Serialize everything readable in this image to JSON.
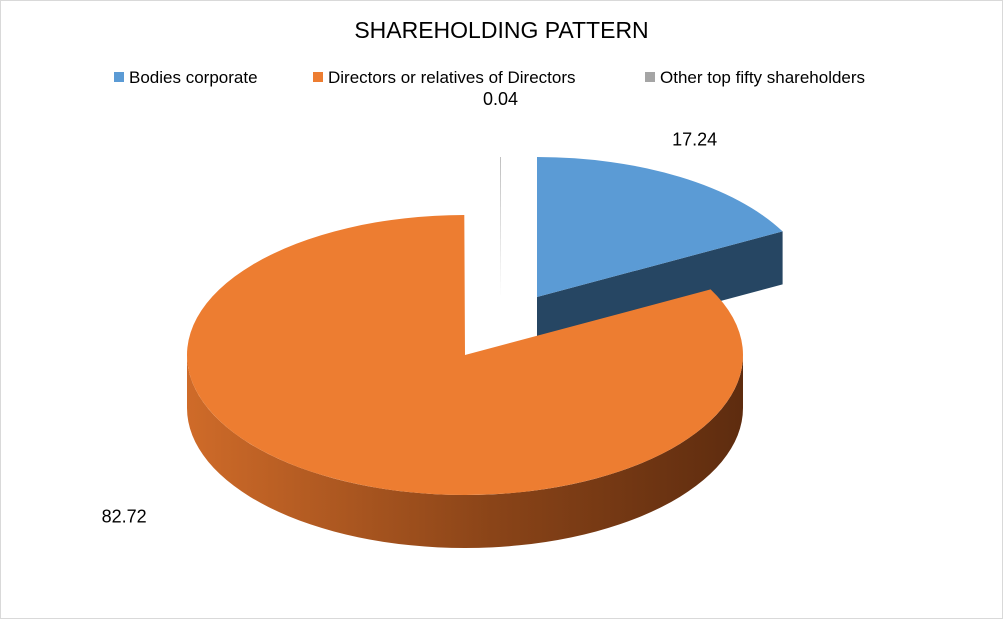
{
  "chart_data": {
    "type": "pie",
    "title": "SHAREHOLDING PATTERN",
    "legend_position": "top",
    "three_d": true,
    "exploded": true,
    "slices": [
      {
        "name": "Bodies corporate",
        "value": 17.24,
        "label": "17.24",
        "color": "#5B9BD5"
      },
      {
        "name": "Directors or relatives of Directors",
        "value": 82.72,
        "label": "82.72",
        "color": "#ED7D31"
      },
      {
        "name": "Other top fifty shareholders",
        "value": 0.04,
        "label": "0.04",
        "color": "#A5A5A5"
      }
    ]
  }
}
